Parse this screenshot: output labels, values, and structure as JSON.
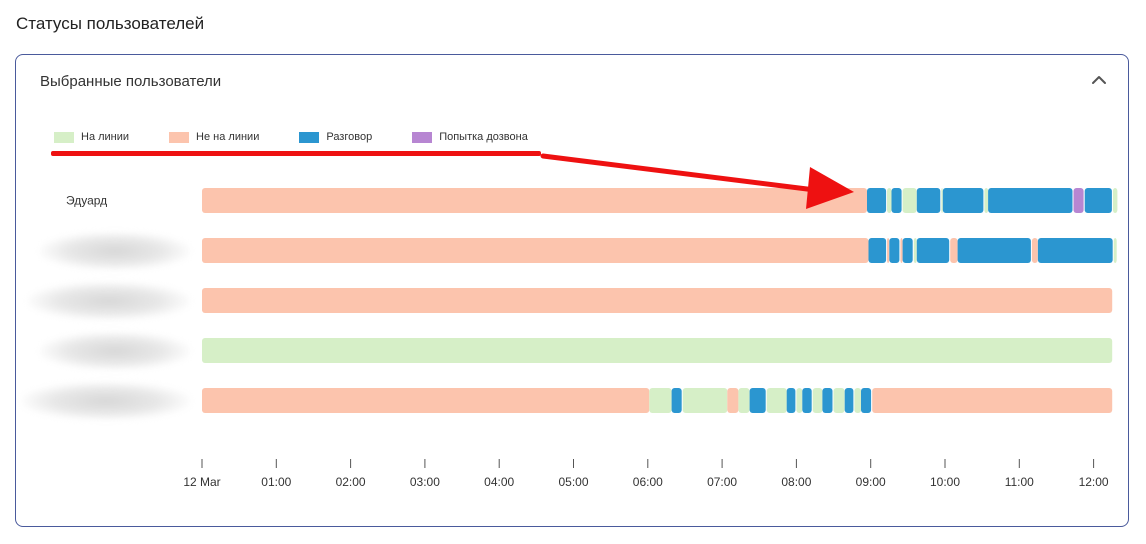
{
  "page": {
    "title": "Статусы пользователей"
  },
  "card": {
    "title": "Выбранные пользователи",
    "collapse_icon": "chevron-up-icon"
  },
  "legend": [
    {
      "label": "На линии",
      "color": "#d6efc7"
    },
    {
      "label": "Не на линии",
      "color": "#fcc4ad"
    },
    {
      "label": "Разговор",
      "color": "#2b96d0"
    },
    {
      "label": "Попытка дозвона",
      "color": "#b786d2"
    }
  ],
  "annotation": {
    "color": "#ee1111"
  },
  "chart_data": {
    "type": "timeline",
    "x_unit": "hours",
    "x_range": [
      0,
      12.25
    ],
    "ticks": [
      {
        "value": 0,
        "label": "12 Mar"
      },
      {
        "value": 1,
        "label": "01:00"
      },
      {
        "value": 2,
        "label": "02:00"
      },
      {
        "value": 3,
        "label": "03:00"
      },
      {
        "value": 4,
        "label": "04:00"
      },
      {
        "value": 5,
        "label": "05:00"
      },
      {
        "value": 6,
        "label": "06:00"
      },
      {
        "value": 7,
        "label": "07:00"
      },
      {
        "value": 8,
        "label": "08:00"
      },
      {
        "value": 9,
        "label": "09:00"
      },
      {
        "value": 10,
        "label": "10:00"
      },
      {
        "value": 11,
        "label": "11:00"
      },
      {
        "value": 12,
        "label": "12:00"
      }
    ],
    "rows": [
      {
        "name": "Эдуард",
        "segments": [
          {
            "start": 0,
            "end": 8.95,
            "status": "Не на линии"
          },
          {
            "start": 8.95,
            "end": 9.22,
            "status": "Разговор"
          },
          {
            "start": 9.22,
            "end": 9.28,
            "status": "На линии"
          },
          {
            "start": 9.28,
            "end": 9.43,
            "status": "Разговор"
          },
          {
            "start": 9.43,
            "end": 9.62,
            "status": "На линии"
          },
          {
            "start": 9.62,
            "end": 9.95,
            "status": "Разговор"
          },
          {
            "start": 9.95,
            "end": 9.97,
            "status": "На линии"
          },
          {
            "start": 9.97,
            "end": 10.53,
            "status": "Разговор"
          },
          {
            "start": 10.53,
            "end": 10.58,
            "status": "На линии"
          },
          {
            "start": 10.58,
            "end": 11.73,
            "status": "Разговор"
          },
          {
            "start": 11.73,
            "end": 11.88,
            "status": "Попытка дозвона"
          },
          {
            "start": 11.88,
            "end": 12.26,
            "status": "Разговор"
          },
          {
            "start": 12.26,
            "end": 12.32,
            "status": "На линии"
          }
        ]
      },
      {
        "name": "",
        "segments": [
          {
            "start": 0,
            "end": 8.97,
            "status": "Не на линии"
          },
          {
            "start": 8.97,
            "end": 9.22,
            "status": "Разговор"
          },
          {
            "start": 9.22,
            "end": 9.25,
            "status": "Не на линии"
          },
          {
            "start": 9.25,
            "end": 9.4,
            "status": "Разговор"
          },
          {
            "start": 9.4,
            "end": 9.43,
            "status": "Не на линии"
          },
          {
            "start": 9.43,
            "end": 9.58,
            "status": "Разговор"
          },
          {
            "start": 9.58,
            "end": 9.62,
            "status": "На линии"
          },
          {
            "start": 9.62,
            "end": 10.07,
            "status": "Разговор"
          },
          {
            "start": 10.07,
            "end": 10.17,
            "status": "Не на линии"
          },
          {
            "start": 10.17,
            "end": 11.17,
            "status": "Разговор"
          },
          {
            "start": 11.17,
            "end": 11.25,
            "status": "Не на линии"
          },
          {
            "start": 11.25,
            "end": 12.27,
            "status": "Разговор"
          },
          {
            "start": 12.27,
            "end": 12.31,
            "status": "На линии"
          }
        ]
      },
      {
        "name": "",
        "segments": [
          {
            "start": 0,
            "end": 12.25,
            "status": "Не на линии"
          }
        ]
      },
      {
        "name": "",
        "segments": [
          {
            "start": 0,
            "end": 12.25,
            "status": "На линии"
          }
        ]
      },
      {
        "name": "",
        "segments": [
          {
            "start": 0,
            "end": 6.02,
            "status": "Не на линии"
          },
          {
            "start": 6.02,
            "end": 6.32,
            "status": "На линии"
          },
          {
            "start": 6.32,
            "end": 6.47,
            "status": "Разговор"
          },
          {
            "start": 6.47,
            "end": 7.07,
            "status": "На линии"
          },
          {
            "start": 7.07,
            "end": 7.22,
            "status": "Не на линии"
          },
          {
            "start": 7.22,
            "end": 7.37,
            "status": "На линии"
          },
          {
            "start": 7.37,
            "end": 7.6,
            "status": "Разговор"
          },
          {
            "start": 7.6,
            "end": 7.87,
            "status": "На линии"
          },
          {
            "start": 7.87,
            "end": 8.0,
            "status": "Разговор"
          },
          {
            "start": 8.0,
            "end": 8.08,
            "status": "На линии"
          },
          {
            "start": 8.08,
            "end": 8.22,
            "status": "Разговор"
          },
          {
            "start": 8.22,
            "end": 8.35,
            "status": "На линии"
          },
          {
            "start": 8.35,
            "end": 8.5,
            "status": "Разговор"
          },
          {
            "start": 8.5,
            "end": 8.65,
            "status": "На линии"
          },
          {
            "start": 8.65,
            "end": 8.78,
            "status": "Разговор"
          },
          {
            "start": 8.78,
            "end": 8.87,
            "status": "На линии"
          },
          {
            "start": 8.87,
            "end": 9.02,
            "status": "Разговор"
          },
          {
            "start": 9.02,
            "end": 12.25,
            "status": "Не на линии"
          }
        ]
      }
    ]
  }
}
